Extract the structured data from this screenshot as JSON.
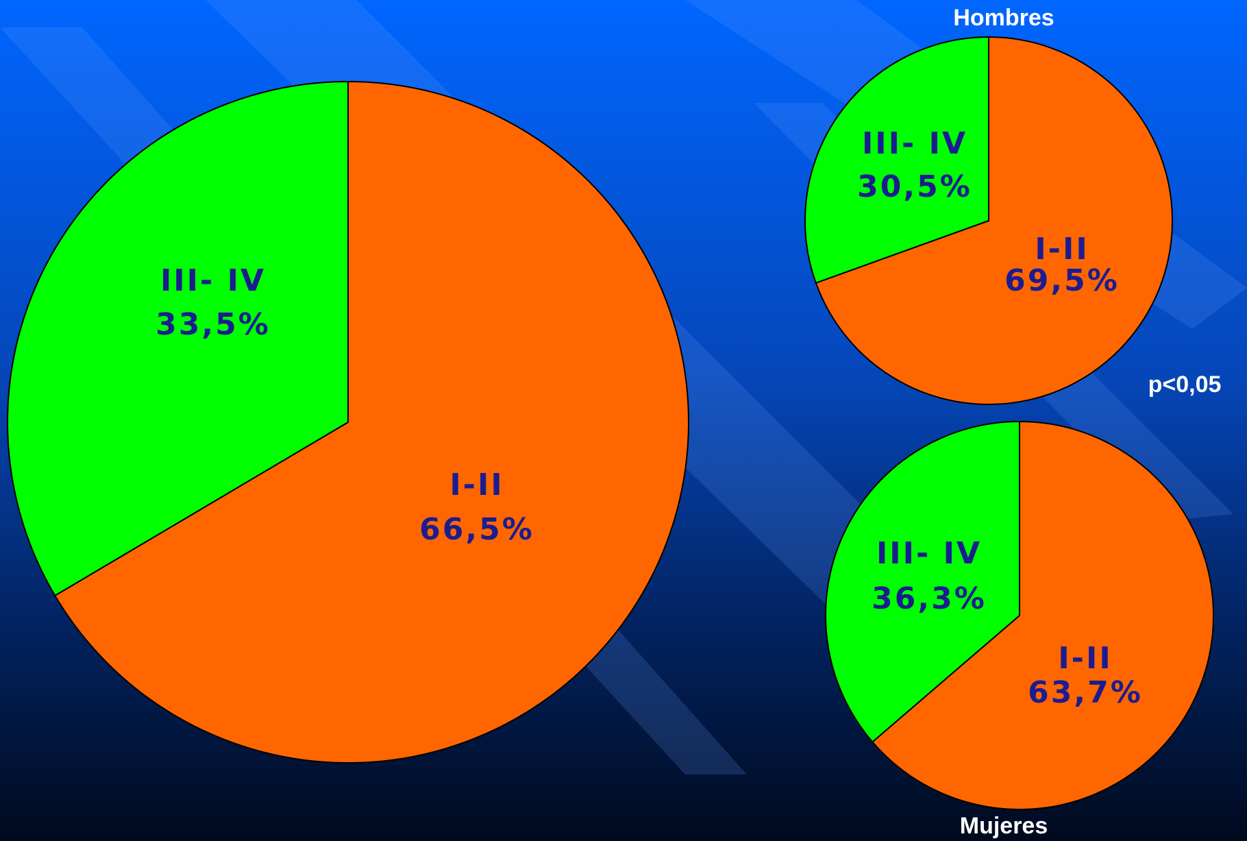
{
  "chart_data": [
    {
      "type": "pie",
      "categories": [
        "I-II",
        "III- IV"
      ],
      "values": [
        66.5,
        33.5
      ],
      "value_labels": [
        "66,5%",
        "33,5%"
      ],
      "colors": [
        "#ff6600",
        "#00ff00"
      ]
    },
    {
      "type": "pie",
      "title": "Hombres",
      "categories": [
        "I-II",
        "III- IV"
      ],
      "values": [
        69.5,
        30.5
      ],
      "value_labels": [
        "69,5%",
        "30,5%"
      ],
      "colors": [
        "#ff6600",
        "#00ff00"
      ]
    },
    {
      "type": "pie",
      "title": "Mujeres",
      "categories": [
        "I-II",
        "III- IV"
      ],
      "values": [
        63.7,
        36.3
      ],
      "value_labels": [
        "63,7%",
        "36,3%"
      ],
      "colors": [
        "#ff6600",
        "#00ff00"
      ]
    }
  ],
  "annotation": "p<0,05"
}
